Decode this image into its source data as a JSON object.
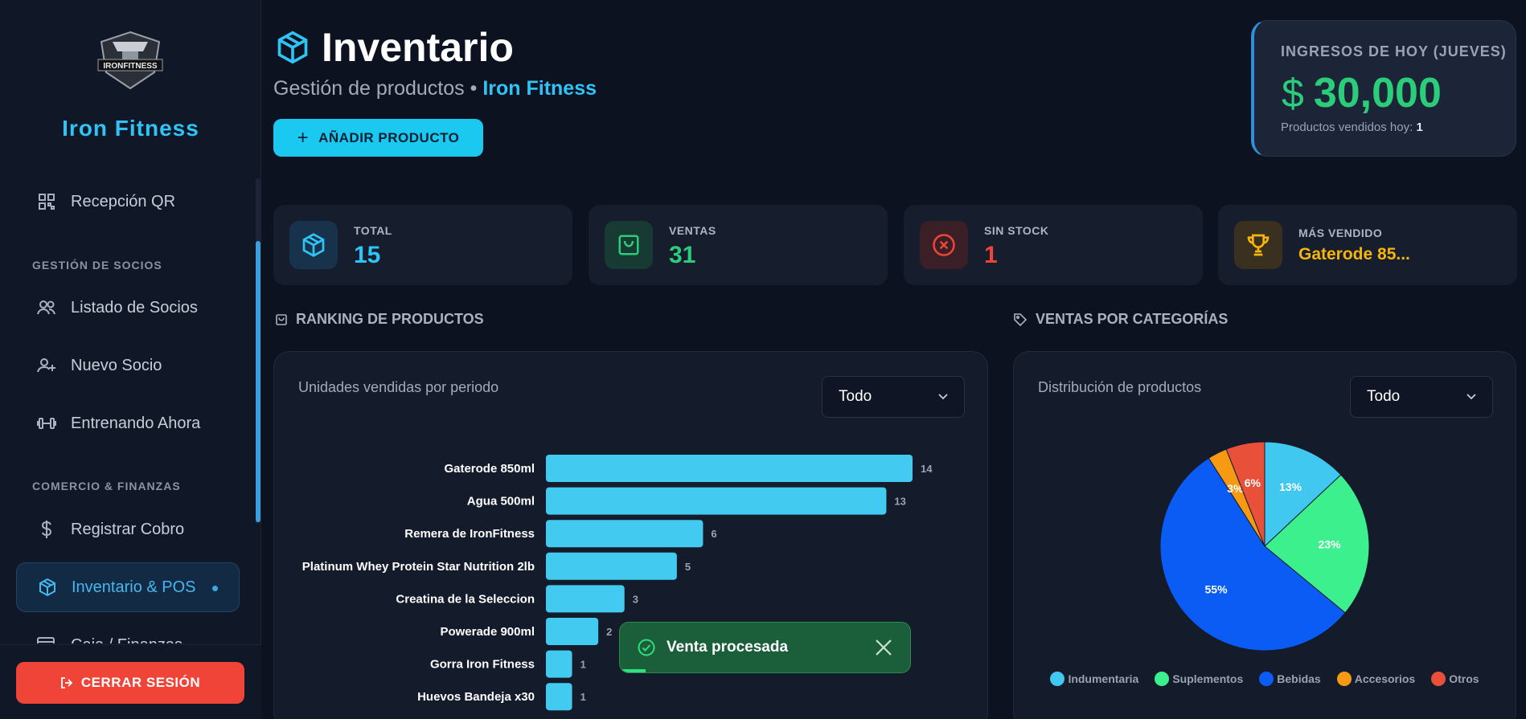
{
  "sidebar": {
    "brand": "Iron Fitness",
    "logo_text": "IRONFITNESS",
    "items": [
      {
        "label": "Recepción QR",
        "icon": "qr-icon"
      },
      {
        "label": "Listado de Socios",
        "icon": "users-icon"
      },
      {
        "label": "Nuevo Socio",
        "icon": "user-plus-icon"
      },
      {
        "label": "Entrenando Ahora",
        "icon": "dumbbell-icon"
      },
      {
        "label": "Registrar Cobro",
        "icon": "dollar-icon"
      },
      {
        "label": "Inventario & POS",
        "icon": "box-icon",
        "active": true
      },
      {
        "label": "Caja / Finanzas",
        "icon": "wallet-icon"
      }
    ],
    "sections": {
      "socios": "GESTIÓN DE SOCIOS",
      "comercio": "COMERCIO & FINANZAS"
    },
    "logout": "CERRAR SESIÓN"
  },
  "header": {
    "title": "Inventario",
    "subtitle": "Gestión de productos",
    "separator": "•",
    "subtitle_brand": "Iron Fitness",
    "add_button": "AÑADIR PRODUCTO"
  },
  "income": {
    "label": "INGRESOS DE HOY (JUEVES)",
    "currency": "$",
    "amount": "30,000",
    "sold_label": "Productos vendidos hoy:",
    "sold_count": "1"
  },
  "stats": [
    {
      "label": "TOTAL",
      "value": "15",
      "color": "#2ec4f5"
    },
    {
      "label": "VENTAS",
      "value": "31",
      "color": "#2bcc7a"
    },
    {
      "label": "SIN STOCK",
      "value": "1",
      "color": "#f04438"
    },
    {
      "label": "MÁS VENDIDO",
      "value": "Gaterode 85...",
      "color": "#f5b50a"
    }
  ],
  "ranking": {
    "section_title": "RANKING DE PRODUCTOS",
    "panel_title": "Unidades vendidas por periodo",
    "filter": "Todo"
  },
  "categories": {
    "section_title": "VENTAS POR CATEGORÍAS",
    "panel_title": "Distribución de productos",
    "filter": "Todo"
  },
  "toast": {
    "message": "Venta procesada",
    "progress": 0.09
  },
  "colors": {
    "accent": "#2ec4f5",
    "bar": "#42caf0",
    "success": "#2bcc7a",
    "danger": "#f04438",
    "warning": "#f5b50a"
  },
  "chart_data": [
    {
      "type": "bar",
      "orientation": "horizontal",
      "categories": [
        "Gaterode 850ml",
        "Agua 500ml",
        "Remera de IronFitness",
        "Platinum Whey Protein Star Nutrition 2lb",
        "Creatina de la Seleccion",
        "Powerade 900ml",
        "Gorra Iron Fitness",
        "Huevos Bandeja x30"
      ],
      "values": [
        14,
        13,
        6,
        5,
        3,
        2,
        1,
        1
      ],
      "grid": false
    },
    {
      "type": "pie",
      "labels": [
        "Indumentaria",
        "Suplementos",
        "Bebidas",
        "Accesorios",
        "Otros"
      ],
      "values": [
        13,
        23,
        55,
        3,
        6
      ],
      "value_labels": [
        "13%",
        "23%",
        "55%",
        "3%",
        "6%"
      ],
      "colors": [
        "#40c8f0",
        "#3df08e",
        "#0a5cf5",
        "#f59a12",
        "#e8503a"
      ],
      "legend": "bottom"
    }
  ]
}
